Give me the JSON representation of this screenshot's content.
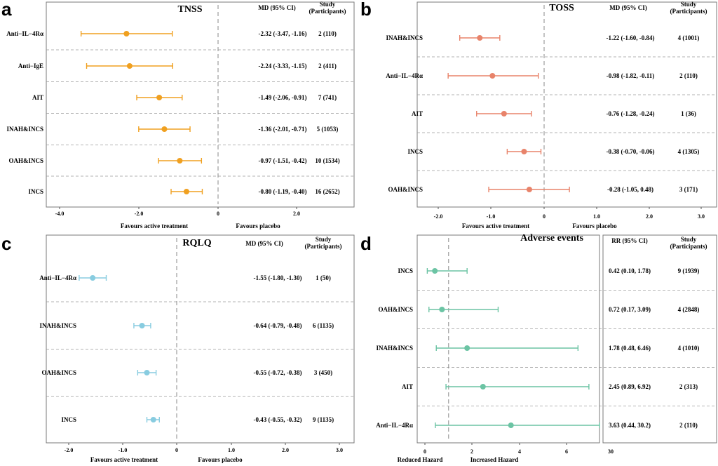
{
  "panels": [
    {
      "letter": "a",
      "title": "TNSS",
      "ci_header": "MD (95% CI)",
      "study_header": [
        "Study",
        "(Participants)"
      ],
      "left_caption": "Favours active treatment",
      "right_caption": "Favours placebo",
      "color": "#F0A020"
    },
    {
      "letter": "b",
      "title": "TOSS",
      "ci_header": "MD (95% CI)",
      "study_header": [
        "Study",
        "(Participants)"
      ],
      "left_caption": "Favours active treatment",
      "right_caption": "Favours placebo",
      "color": "#E8836A"
    },
    {
      "letter": "c",
      "title": "RQLQ",
      "ci_header": "MD (95% CI)",
      "study_header": [
        "Study",
        "(Participants)"
      ],
      "left_caption": "Favours active treatment",
      "right_caption": "Favours placebo",
      "color": "#88CCE0"
    },
    {
      "letter": "d",
      "title": "Adverse events",
      "ci_header": "RR (95% CI)",
      "study_header": [
        "Study",
        "(Participants)"
      ],
      "left_caption": "Reduced Hazard",
      "right_caption": "Increased Hazard",
      "color": "#6CC4A4"
    }
  ],
  "chart_data": [
    {
      "type": "forest",
      "panel": "a",
      "title": "TNSS",
      "ref_line": 0,
      "xlim": [
        -4.5,
        3.0
      ],
      "xticks": [
        "-4.0",
        "-2.0",
        "0",
        "2.0"
      ],
      "rows": [
        {
          "label": "Anti−IL−4Rα",
          "est": -2.32,
          "lo": -3.47,
          "hi": -1.16,
          "ci": "-2.32 (-3.47, -1.16)",
          "study": "2 (110)"
        },
        {
          "label": "Anti−IgE",
          "est": -2.24,
          "lo": -3.33,
          "hi": -1.15,
          "ci": "-2.24 (-3.33, -1.15)",
          "study": "2 (411)"
        },
        {
          "label": "AIT",
          "est": -1.49,
          "lo": -2.06,
          "hi": -0.91,
          "ci": "-1.49 (-2.06, -0.91)",
          "study": "7 (741)"
        },
        {
          "label": "INAH&INCS",
          "est": -1.36,
          "lo": -2.01,
          "hi": -0.71,
          "ci": "-1.36 (-2.01, -0.71)",
          "study": "5 (1053)"
        },
        {
          "label": "OAH&INCS",
          "est": -0.97,
          "lo": -1.51,
          "hi": -0.42,
          "ci": "-0.97 (-1.51, -0.42)",
          "study": "10 (1534)"
        },
        {
          "label": "INCS",
          "est": -0.8,
          "lo": -1.19,
          "hi": -0.4,
          "ci": "-0.80 (-1.19, -0.40)",
          "study": "16 (2652)"
        }
      ]
    },
    {
      "type": "forest",
      "panel": "b",
      "title": "TOSS",
      "ref_line": 0,
      "xlim": [
        -2.2,
        3.1
      ],
      "xticks": [
        "-2.0",
        "-1.0",
        "0",
        "1.0",
        "2.0",
        "3.0"
      ],
      "rows": [
        {
          "label": "INAH&INCS",
          "est": -1.22,
          "lo": -1.6,
          "hi": -0.84,
          "ci": "-1.22 (-1.60, -0.84)",
          "study": "4 (1001)"
        },
        {
          "label": "Anti−IL−4Rα",
          "est": -0.98,
          "lo": -1.82,
          "hi": -0.11,
          "ci": "-0.98 (-1.82, -0.11)",
          "study": "2 (110)"
        },
        {
          "label": "AIT",
          "est": -0.76,
          "lo": -1.28,
          "hi": -0.24,
          "ci": "-0.76 (-1.28, -0.24)",
          "study": "1 (36)"
        },
        {
          "label": "INCS",
          "est": -0.38,
          "lo": -0.7,
          "hi": -0.06,
          "ci": "-0.38 (-0.70, -0.06)",
          "study": "4 (1305)"
        },
        {
          "label": "OAH&INCS",
          "est": -0.28,
          "lo": -1.05,
          "hi": 0.48,
          "ci": "-0.28 (-1.05, 0.48)",
          "study": "3 (171)"
        }
      ]
    },
    {
      "type": "forest",
      "panel": "c",
      "title": "RQLQ",
      "ref_line": 0,
      "xlim": [
        -2.2,
        3.1
      ],
      "xticks": [
        "-2.0",
        "-1.0",
        "0",
        "1.0",
        "2.0",
        "3.0"
      ],
      "rows": [
        {
          "label": "Anti−IL−4Rα",
          "est": -1.55,
          "lo": -1.8,
          "hi": -1.3,
          "ci": "-1.55 (-1.80, -1.30)",
          "study": "1 (50)"
        },
        {
          "label": "INAH&INCS",
          "est": -0.64,
          "lo": -0.79,
          "hi": -0.48,
          "ci": "-0.64 (-0.79, -0.48)",
          "study": "6 (1135)"
        },
        {
          "label": "OAH&INCS",
          "est": -0.55,
          "lo": -0.72,
          "hi": -0.38,
          "ci": "-0.55 (-0.72, -0.38)",
          "study": "3 (450)"
        },
        {
          "label": "INCS",
          "est": -0.43,
          "lo": -0.55,
          "hi": -0.32,
          "ci": "-0.43 (-0.55, -0.32)",
          "study": "9 (1135)"
        }
      ]
    },
    {
      "type": "forest",
      "panel": "d",
      "title": "Adverse events",
      "ref_line": 1,
      "xlim": [
        -0.2,
        7.5
      ],
      "xticks": [
        "0",
        "2",
        "4",
        "6"
      ],
      "xticks_right": [
        "30"
      ],
      "rows": [
        {
          "label": "INCS",
          "est": 0.42,
          "lo": 0.1,
          "hi": 1.78,
          "ci": "0.42 (0.10, 1.78)",
          "study": "9 (1939)"
        },
        {
          "label": "OAH&INCS",
          "est": 0.72,
          "lo": 0.17,
          "hi": 3.09,
          "ci": "0.72 (0.17, 3.09)",
          "study": "4 (2848)"
        },
        {
          "label": "INAH&INCS",
          "est": 1.78,
          "lo": 0.48,
          "hi": 6.46,
          "ci": "1.78 (0.48, 6.46)",
          "study": "4 (1010)"
        },
        {
          "label": "AIT",
          "est": 2.45,
          "lo": 0.89,
          "hi": 6.92,
          "ci": "2.45 (0.89, 6.92)",
          "study": "2 (313)"
        },
        {
          "label": "Anti−IL−4Rα",
          "est": 3.63,
          "lo": 0.44,
          "hi": 30.2,
          "ci": "3.63 (0.44, 30.2)",
          "study": "2 (110)"
        }
      ]
    }
  ]
}
